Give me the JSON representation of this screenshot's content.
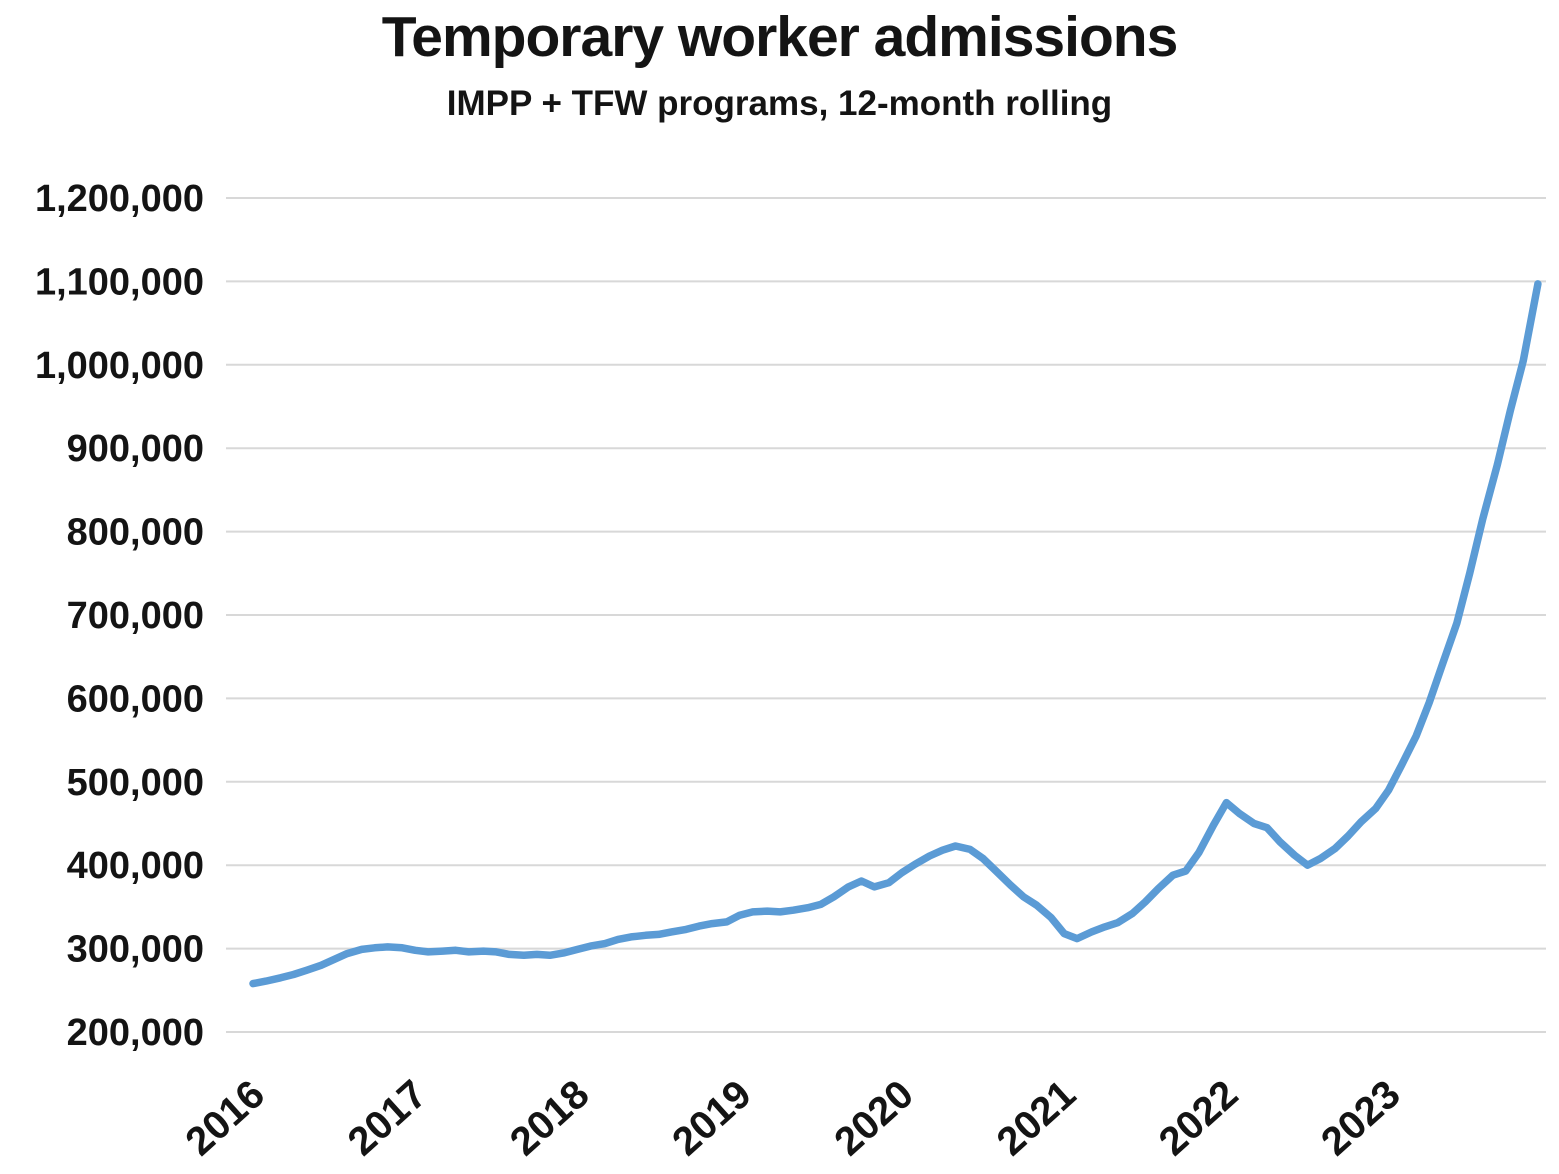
{
  "chart_data": {
    "type": "line",
    "title": "Temporary worker admissions",
    "subtitle": "IMPP + TFW programs, 12-month rolling",
    "xlabel": "",
    "ylabel": "",
    "ylim": [
      200000,
      1200000
    ],
    "xlim": [
      2015.92,
      2023.97
    ],
    "yticks": [
      200000,
      300000,
      400000,
      500000,
      600000,
      700000,
      800000,
      900000,
      1000000,
      1100000,
      1200000
    ],
    "xticks": [
      2016,
      2017,
      2018,
      2019,
      2020,
      2021,
      2022,
      2023
    ],
    "grid": "horizontal",
    "grid_color": "#D8D8D8",
    "line_color": "#5B9BD5",
    "legend": "none",
    "series": [
      {
        "name": "Temporary worker admissions (IMPP + TFW, 12-month rolling)",
        "points": [
          [
            2016.0,
            258000
          ],
          [
            2016.08,
            261000
          ],
          [
            2016.17,
            265000
          ],
          [
            2016.25,
            269000
          ],
          [
            2016.33,
            274000
          ],
          [
            2016.42,
            280000
          ],
          [
            2016.5,
            287000
          ],
          [
            2016.58,
            294000
          ],
          [
            2016.67,
            299000
          ],
          [
            2016.75,
            301000
          ],
          [
            2016.83,
            302000
          ],
          [
            2016.92,
            301000
          ],
          [
            2017.0,
            298000
          ],
          [
            2017.08,
            296000
          ],
          [
            2017.17,
            297000
          ],
          [
            2017.25,
            298000
          ],
          [
            2017.33,
            296000
          ],
          [
            2017.42,
            297000
          ],
          [
            2017.5,
            296000
          ],
          [
            2017.58,
            293000
          ],
          [
            2017.67,
            292000
          ],
          [
            2017.75,
            293000
          ],
          [
            2017.83,
            292000
          ],
          [
            2017.92,
            295000
          ],
          [
            2018.0,
            299000
          ],
          [
            2018.08,
            303000
          ],
          [
            2018.17,
            306000
          ],
          [
            2018.25,
            311000
          ],
          [
            2018.33,
            314000
          ],
          [
            2018.42,
            316000
          ],
          [
            2018.5,
            317000
          ],
          [
            2018.58,
            320000
          ],
          [
            2018.67,
            323000
          ],
          [
            2018.75,
            327000
          ],
          [
            2018.83,
            330000
          ],
          [
            2018.92,
            332000
          ],
          [
            2019.0,
            340000
          ],
          [
            2019.08,
            344000
          ],
          [
            2019.17,
            345000
          ],
          [
            2019.25,
            344000
          ],
          [
            2019.33,
            346000
          ],
          [
            2019.42,
            349000
          ],
          [
            2019.5,
            353000
          ],
          [
            2019.58,
            362000
          ],
          [
            2019.67,
            374000
          ],
          [
            2019.75,
            381000
          ],
          [
            2019.83,
            374000
          ],
          [
            2019.92,
            379000
          ],
          [
            2020.0,
            391000
          ],
          [
            2020.08,
            401000
          ],
          [
            2020.17,
            411000
          ],
          [
            2020.25,
            418000
          ],
          [
            2020.33,
            423000
          ],
          [
            2020.42,
            419000
          ],
          [
            2020.5,
            408000
          ],
          [
            2020.58,
            393000
          ],
          [
            2020.67,
            376000
          ],
          [
            2020.75,
            362000
          ],
          [
            2020.83,
            352000
          ],
          [
            2020.92,
            337000
          ],
          [
            2021.0,
            318000
          ],
          [
            2021.08,
            312000
          ],
          [
            2021.17,
            320000
          ],
          [
            2021.25,
            326000
          ],
          [
            2021.33,
            331000
          ],
          [
            2021.42,
            342000
          ],
          [
            2021.5,
            356000
          ],
          [
            2021.58,
            372000
          ],
          [
            2021.67,
            388000
          ],
          [
            2021.75,
            393000
          ],
          [
            2021.83,
            415000
          ],
          [
            2021.92,
            448000
          ],
          [
            2022.0,
            475000
          ],
          [
            2022.08,
            462000
          ],
          [
            2022.17,
            450000
          ],
          [
            2022.25,
            445000
          ],
          [
            2022.33,
            428000
          ],
          [
            2022.42,
            412000
          ],
          [
            2022.5,
            400000
          ],
          [
            2022.58,
            408000
          ],
          [
            2022.67,
            420000
          ],
          [
            2022.75,
            435000
          ],
          [
            2022.83,
            452000
          ],
          [
            2022.92,
            468000
          ],
          [
            2023.0,
            490000
          ],
          [
            2023.08,
            520000
          ],
          [
            2023.17,
            555000
          ],
          [
            2023.25,
            595000
          ],
          [
            2023.33,
            640000
          ],
          [
            2023.42,
            690000
          ],
          [
            2023.5,
            750000
          ],
          [
            2023.58,
            815000
          ],
          [
            2023.67,
            880000
          ],
          [
            2023.75,
            945000
          ],
          [
            2023.83,
            1005000
          ],
          [
            2023.92,
            1097000
          ]
        ]
      }
    ]
  }
}
